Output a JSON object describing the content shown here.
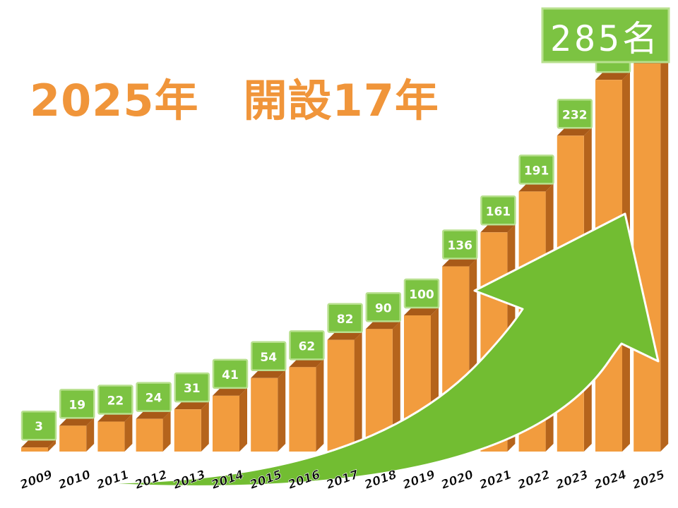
{
  "title": "2025年　開設17年",
  "total_badge": "285名",
  "colors": {
    "title": "#f0953a",
    "bar_front": "#f29c3e",
    "bar_side": "#b5641c",
    "bar_top": "#a85a18",
    "label_fill": "#7cc342",
    "label_border": "#b8e08f",
    "arrow": "#72bd32"
  },
  "chart_data": {
    "type": "bar",
    "categories": [
      "2009",
      "2010",
      "2011",
      "2012",
      "2013",
      "2014",
      "2015",
      "2016",
      "2017",
      "2018",
      "2019",
      "2020",
      "2021",
      "2022",
      "2023",
      "2024",
      "2025"
    ],
    "values": [
      3,
      19,
      22,
      24,
      31,
      41,
      54,
      62,
      82,
      90,
      100,
      136,
      161,
      191,
      232,
      273,
      285
    ],
    "data_labels": [
      "3",
      "19",
      "22",
      "24",
      "31",
      "41",
      "54",
      "62",
      "82",
      "90",
      "100",
      "136",
      "161",
      "191",
      "232",
      "273",
      ""
    ],
    "trend_arrow": true
  }
}
